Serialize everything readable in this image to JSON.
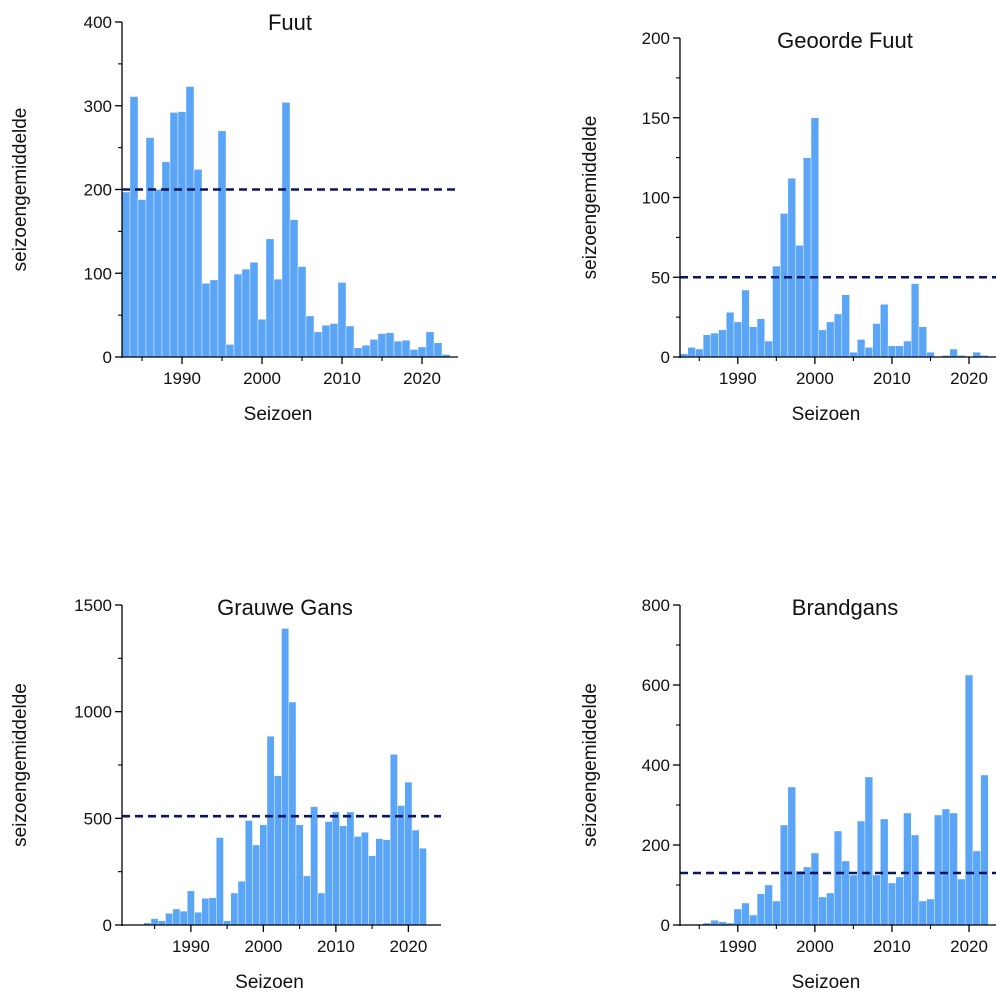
{
  "colors": {
    "bar": "#5aa5f5",
    "threshold": "#0a1560",
    "axis": "#000000"
  },
  "chart_data": [
    {
      "type": "bar",
      "title": "Fuut",
      "xlabel": "Seizoen",
      "ylabel": "seizoengemiddelde",
      "ylim": [
        0,
        400
      ],
      "yticks": [
        0,
        100,
        200,
        300,
        400
      ],
      "xticks": [
        1990,
        2000,
        2010,
        2020
      ],
      "threshold": 200,
      "x": [
        1983,
        1984,
        1985,
        1986,
        1987,
        1988,
        1989,
        1990,
        1991,
        1992,
        1993,
        1994,
        1995,
        1996,
        1997,
        1998,
        1999,
        2000,
        2001,
        2002,
        2003,
        2004,
        2005,
        2006,
        2007,
        2008,
        2009,
        2010,
        2011,
        2012,
        2013,
        2014,
        2015,
        2016,
        2017,
        2018,
        2019,
        2020,
        2021,
        2022,
        2023
      ],
      "values": [
        197,
        311,
        188,
        262,
        200,
        233,
        292,
        293,
        323,
        224,
        88,
        92,
        270,
        15,
        99,
        105,
        113,
        45,
        141,
        93,
        304,
        164,
        108,
        49,
        30,
        38,
        40,
        89,
        37,
        11,
        14,
        21,
        28,
        29,
        19,
        20,
        9,
        12,
        30,
        17,
        3
      ]
    },
    {
      "type": "bar",
      "title": "Geoorde Fuut",
      "xlabel": "Seizoen",
      "ylabel": "seizoengemiddelde",
      "ylim": [
        0,
        200
      ],
      "yticks": [
        0,
        50,
        100,
        150,
        200
      ],
      "xticks": [
        1990,
        2000,
        2010,
        2020
      ],
      "threshold": 50,
      "x": [
        1983,
        1984,
        1985,
        1986,
        1987,
        1988,
        1989,
        1990,
        1991,
        1992,
        1993,
        1994,
        1995,
        1996,
        1997,
        1998,
        1999,
        2000,
        2001,
        2002,
        2003,
        2004,
        2005,
        2006,
        2007,
        2008,
        2009,
        2010,
        2011,
        2012,
        2013,
        2014,
        2015,
        2016,
        2017,
        2018,
        2019,
        2020,
        2021,
        2022,
        2023
      ],
      "values": [
        2,
        6,
        5,
        14,
        15,
        17,
        28,
        22,
        42,
        19,
        24,
        10,
        57,
        90,
        112,
        70,
        125,
        150,
        17,
        22,
        27,
        39,
        3,
        11,
        6,
        21,
        33,
        7,
        7,
        10,
        46,
        19,
        3,
        0,
        1,
        5,
        1,
        0,
        3,
        1,
        0
      ]
    },
    {
      "type": "bar",
      "title": "Grauwe Gans",
      "xlabel": "Seizoen",
      "ylabel": "seizoengemiddelde",
      "ylim": [
        0,
        1500
      ],
      "yticks": [
        0,
        500,
        1000,
        1500
      ],
      "xticks": [
        1990,
        2000,
        2010,
        2020
      ],
      "threshold": 510,
      "x": [
        1983,
        1984,
        1985,
        1986,
        1987,
        1988,
        1989,
        1990,
        1991,
        1992,
        1993,
        1994,
        1995,
        1996,
        1997,
        1998,
        1999,
        2000,
        2001,
        2002,
        2003,
        2004,
        2005,
        2006,
        2007,
        2008,
        2009,
        2010,
        2011,
        2012,
        2013,
        2014,
        2015,
        2016,
        2017,
        2018,
        2019,
        2020,
        2021,
        2022,
        2023
      ],
      "values": [
        0,
        10,
        30,
        20,
        55,
        75,
        65,
        160,
        60,
        125,
        128,
        410,
        20,
        150,
        205,
        490,
        375,
        470,
        885,
        700,
        1390,
        1045,
        470,
        230,
        555,
        150,
        485,
        530,
        465,
        530,
        415,
        435,
        325,
        405,
        400,
        800,
        560,
        670,
        445,
        360,
        0
      ]
    },
    {
      "type": "bar",
      "title": "Brandgans",
      "xlabel": "Seizoen",
      "ylabel": "seizoengemiddelde",
      "ylim": [
        0,
        800
      ],
      "yticks": [
        0,
        200,
        400,
        600,
        800
      ],
      "xticks": [
        1990,
        2000,
        2010,
        2020
      ],
      "threshold": 130,
      "x": [
        1983,
        1984,
        1985,
        1986,
        1987,
        1988,
        1989,
        1990,
        1991,
        1992,
        1993,
        1994,
        1995,
        1996,
        1997,
        1998,
        1999,
        2000,
        2001,
        2002,
        2003,
        2004,
        2005,
        2006,
        2007,
        2008,
        2009,
        2010,
        2011,
        2012,
        2013,
        2014,
        2015,
        2016,
        2017,
        2018,
        2019,
        2020,
        2021,
        2022,
        2023
      ],
      "values": [
        0,
        0,
        2,
        5,
        12,
        8,
        5,
        40,
        55,
        25,
        78,
        100,
        60,
        250,
        345,
        135,
        145,
        180,
        70,
        80,
        235,
        160,
        125,
        260,
        370,
        125,
        265,
        105,
        120,
        280,
        225,
        60,
        65,
        275,
        290,
        280,
        115,
        625,
        185,
        375,
        0
      ]
    }
  ]
}
